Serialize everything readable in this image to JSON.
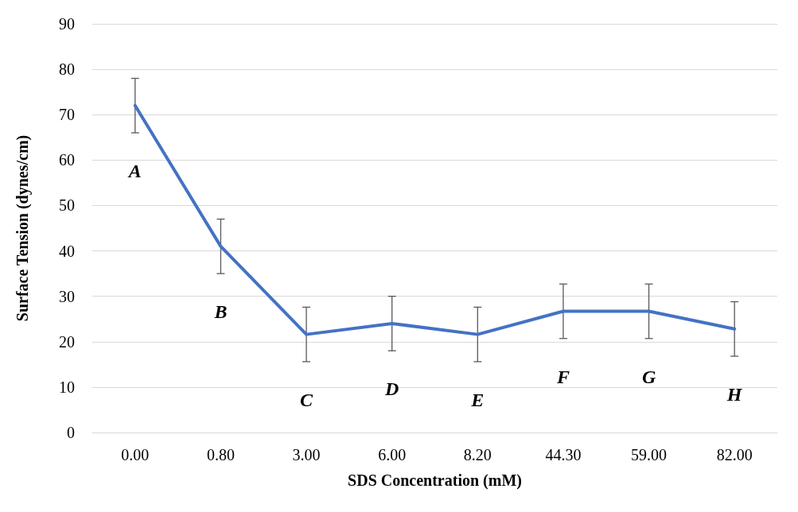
{
  "chart_data": {
    "type": "line",
    "xlabel": "SDS Concentration (mM)",
    "ylabel": "Surface Tension (dynes/cm)",
    "categories": [
      "0.00",
      "0.80",
      "3.00",
      "6.00",
      "8.20",
      "44.30",
      "59.00",
      "82.00"
    ],
    "values": [
      72,
      41,
      21.6,
      24,
      21.6,
      26.7,
      26.7,
      22.8
    ],
    "errors": [
      6,
      6,
      6,
      6,
      6,
      6,
      6,
      6
    ],
    "color": "#4472c4",
    "ylim": [
      0,
      90
    ],
    "yticks": [
      0,
      10,
      20,
      30,
      40,
      50,
      60,
      70,
      80,
      90
    ],
    "grid": "y",
    "marker": "none",
    "line_style": "solid",
    "annotations": [
      "A",
      "B",
      "C",
      "D",
      "E",
      "F",
      "G",
      "H"
    ]
  }
}
